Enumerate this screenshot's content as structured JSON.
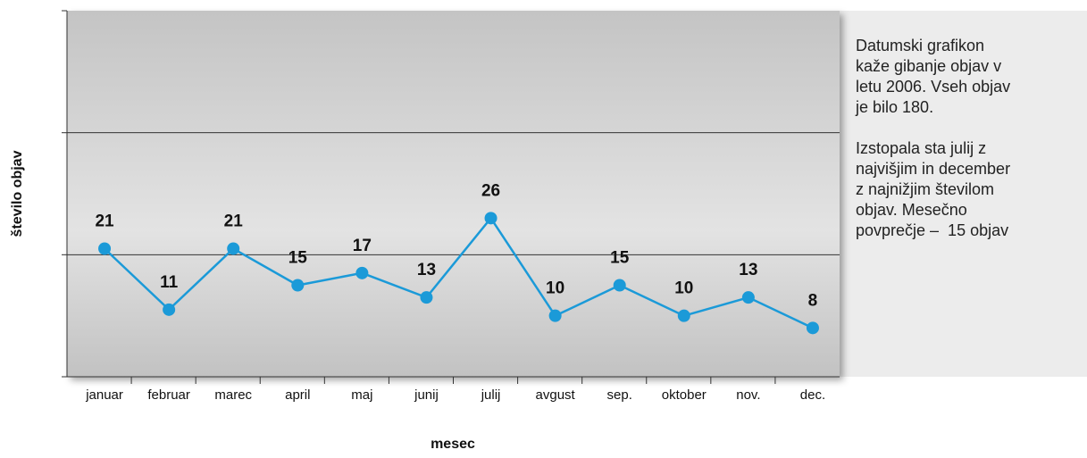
{
  "chart_data": {
    "type": "line",
    "x_label": "mesec",
    "y_label": "število objav",
    "categories": [
      "januar",
      "februar",
      "marec",
      "april",
      "maj",
      "junij",
      "julij",
      "avgust",
      "sep.",
      "oktober",
      "nov.",
      "dec."
    ],
    "series": [
      {
        "color": "#1b9ad8",
        "values": [
          21,
          11,
          21,
          15,
          17,
          13,
          26,
          10,
          15,
          10,
          13,
          8
        ]
      }
    ],
    "ylim": [
      0,
      60
    ],
    "yticks": [
      0,
      20,
      40,
      60
    ],
    "grid": true,
    "annotations": [
      [
        "Datumski grafikon",
        "kaže gibanje objav v",
        "letu 2006. Vseh objav",
        "je bilo 180."
      ],
      [
        "Izstopala sta julij z",
        "najvišjim in december",
        "z najnižjim številom",
        "objav. Mesečno",
        "povprečje –  15 objav"
      ]
    ]
  }
}
